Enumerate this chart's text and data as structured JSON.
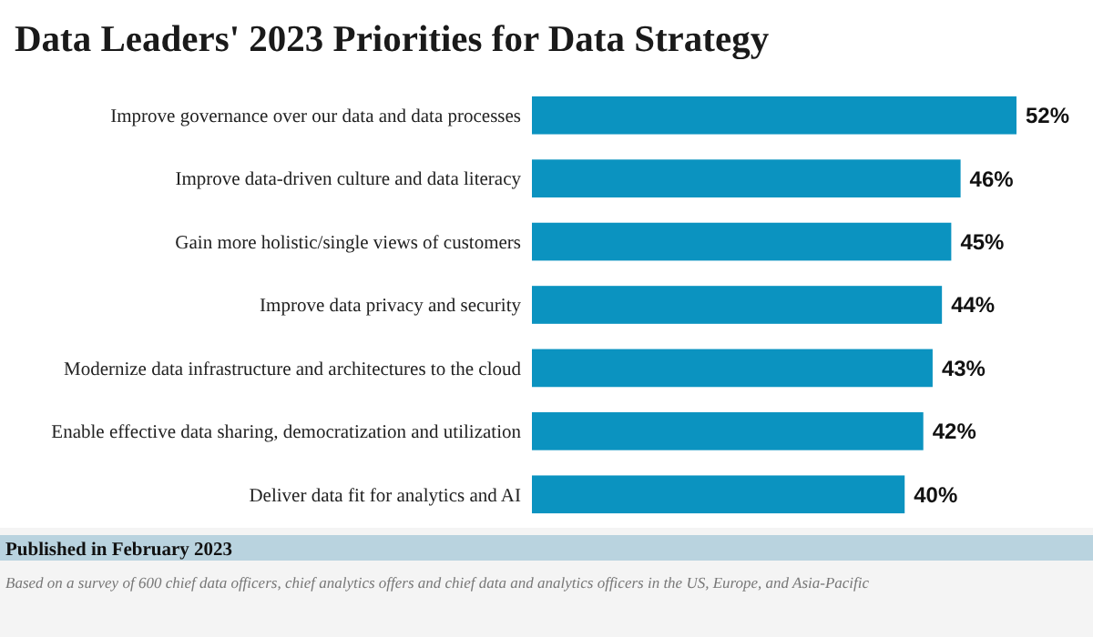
{
  "chart_data": {
    "type": "bar",
    "orientation": "horizontal",
    "title": "Data Leaders' 2023 Priorities for Data Strategy",
    "categories": [
      "Improve governance over our data and data processes",
      "Improve data-driven culture and data literacy",
      "Gain more holistic/single views of customers",
      "Improve data privacy and security",
      "Modernize data infrastructure and architectures to the cloud",
      "Enable effective data sharing, democratization and utilization",
      "Deliver data fit for analytics and AI"
    ],
    "values": [
      52,
      46,
      45,
      44,
      43,
      42,
      40
    ],
    "value_labels": [
      "52%",
      "46%",
      "45%",
      "44%",
      "43%",
      "42%",
      "40%"
    ],
    "color": "#0b93c0",
    "annotations": [
      "Published in February 2023",
      "Based on a survey of 600 chief data officers, chief analytics offers and chief data and analytics officers in the US, Europe, and Asia-Pacific"
    ]
  }
}
